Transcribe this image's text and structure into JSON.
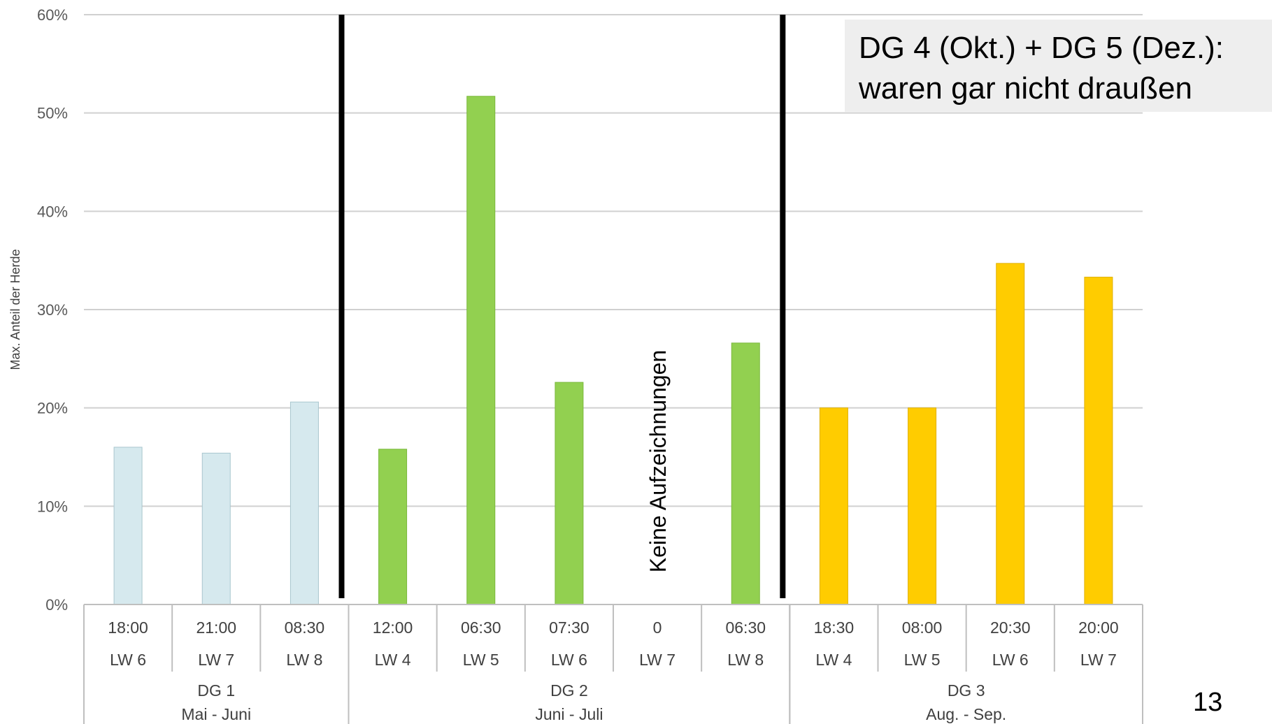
{
  "chart_data": {
    "type": "bar",
    "ylabel": "Max. Anteil der Herde",
    "ylim": [
      0,
      0.6
    ],
    "ytick_labels": [
      "0%",
      "10%",
      "20%",
      "30%",
      "40%",
      "50%",
      "60%"
    ],
    "grid": true,
    "categories": [
      {
        "time": "18:00",
        "week": "LW 6",
        "group": 0
      },
      {
        "time": "21:00",
        "week": "LW 7",
        "group": 0
      },
      {
        "time": "08:30",
        "week": "LW 8",
        "group": 0
      },
      {
        "time": "12:00",
        "week": "LW 4",
        "group": 1
      },
      {
        "time": "06:30",
        "week": "LW 5",
        "group": 1
      },
      {
        "time": "07:30",
        "week": "LW 6",
        "group": 1
      },
      {
        "time": "0",
        "week": "LW 7",
        "group": 1
      },
      {
        "time": "06:30",
        "week": "LW 8",
        "group": 1
      },
      {
        "time": "18:30",
        "week": "LW 4",
        "group": 2
      },
      {
        "time": "08:00",
        "week": "LW 5",
        "group": 2
      },
      {
        "time": "20:30",
        "week": "LW 6",
        "group": 2
      },
      {
        "time": "20:00",
        "week": "LW 7",
        "group": 2
      }
    ],
    "values": [
      0.16,
      0.154,
      0.206,
      0.158,
      0.517,
      0.226,
      0,
      0.266,
      0.2,
      0.2,
      0.347,
      0.333
    ],
    "groups": [
      {
        "name": "DG 1",
        "period": "Mai - Juni",
        "color": "#d6e9ee",
        "border": "#a9c6ce"
      },
      {
        "name": "DG 2",
        "period": "Juni - Juli",
        "color": "#92d050",
        "border": "#7ab83c"
      },
      {
        "name": "DG 3",
        "period": "Aug. - Sep.",
        "color": "#ffcc00",
        "border": "#e0b000"
      }
    ],
    "annotation": "Keine Aufzeichnungen"
  },
  "callout": {
    "line1": "DG 4 (Okt.) + DG 5 (Dez.):",
    "line2": "waren gar nicht draußen"
  },
  "page_number": "13"
}
